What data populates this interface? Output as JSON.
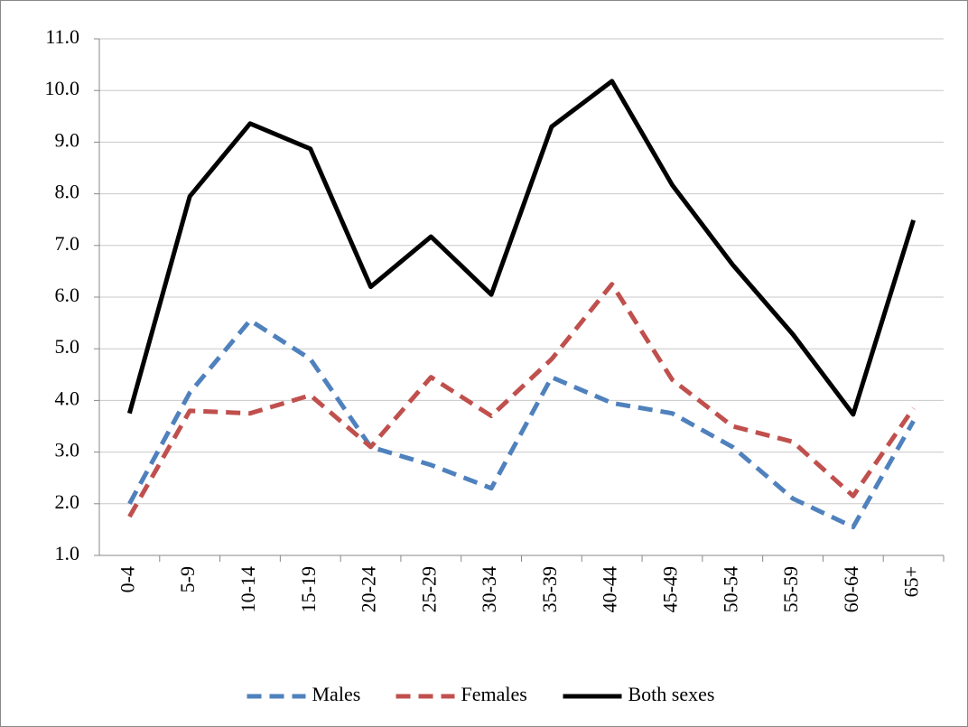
{
  "chart_data": {
    "type": "line",
    "categories": [
      "0-4",
      "5-9",
      "10-14",
      "15-19",
      "20-24",
      "25-29",
      "30-34",
      "35-39",
      "40-44",
      "45-49",
      "50-54",
      "55-59",
      "60-64",
      "65+"
    ],
    "series": [
      {
        "name": "Males",
        "color": "#4f81bd",
        "dash": true,
        "values": [
          2.0,
          4.15,
          5.55,
          4.8,
          3.1,
          2.75,
          2.3,
          4.45,
          3.95,
          3.75,
          3.1,
          2.1,
          1.55,
          3.6
        ]
      },
      {
        "name": "Females",
        "color": "#c0504d",
        "dash": true,
        "values": [
          1.75,
          3.8,
          3.75,
          4.1,
          3.1,
          4.45,
          3.7,
          4.8,
          6.25,
          4.4,
          3.5,
          3.2,
          2.15,
          3.85
        ]
      },
      {
        "name": "Both sexes",
        "color": "#000000",
        "dash": false,
        "values": [
          3.75,
          7.95,
          9.36,
          8.87,
          6.2,
          7.17,
          6.05,
          9.3,
          10.18,
          8.17,
          6.63,
          5.28,
          3.73,
          7.49
        ]
      }
    ],
    "ylim": [
      1,
      11
    ],
    "yticks": [
      {
        "value": 1,
        "label": "1.0"
      },
      {
        "value": 2,
        "label": "2.0"
      },
      {
        "value": 3,
        "label": "3.0"
      },
      {
        "value": 4,
        "label": "4.0"
      },
      {
        "value": 5,
        "label": "5.0"
      },
      {
        "value": 6,
        "label": "6.0"
      },
      {
        "value": 7,
        "label": "7.0"
      },
      {
        "value": 8,
        "label": "8.0"
      },
      {
        "value": 9,
        "label": "9.0"
      },
      {
        "value": 10,
        "label": "10.0"
      },
      {
        "value": 11,
        "label": "11.0"
      }
    ],
    "grid": true,
    "legend": "bottom"
  }
}
